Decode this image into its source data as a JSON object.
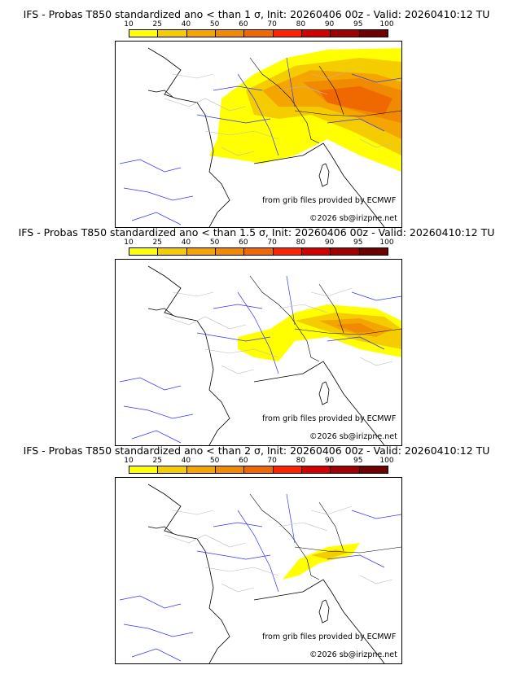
{
  "colorbar": {
    "ticks": [
      "10",
      "25",
      "40",
      "50",
      "60",
      "70",
      "80",
      "90",
      "95",
      "100"
    ],
    "colors": [
      "#ffff00",
      "#f5cc00",
      "#f5a500",
      "#f08a00",
      "#f06800",
      "#ff2200",
      "#d40000",
      "#a00000",
      "#6e0000"
    ]
  },
  "panels": [
    {
      "title": "IFS - Probas T850  standardized ano < than 1 σ, Init: 20260406 00z - Valid: 20260410:12 TU",
      "source": "from grib files provided by ECMWF",
      "copyright": "©2026 sb@irizpne.net"
    },
    {
      "title": "IFS - Probas T850  standardized ano < than 1.5 σ, Init: 20260406 00z - Valid: 20260410:12 TU",
      "source": "from grib files provided by ECMWF",
      "copyright": "©2026 sb@irizpne.net"
    },
    {
      "title": "IFS - Probas T850  standardized ano < than 2 σ, Init: 20260406 00z - Valid: 20260410:12 TU",
      "source": "from grib files provided by ECMWF",
      "copyright": "©2026 sb@irizpne.net"
    }
  ]
}
